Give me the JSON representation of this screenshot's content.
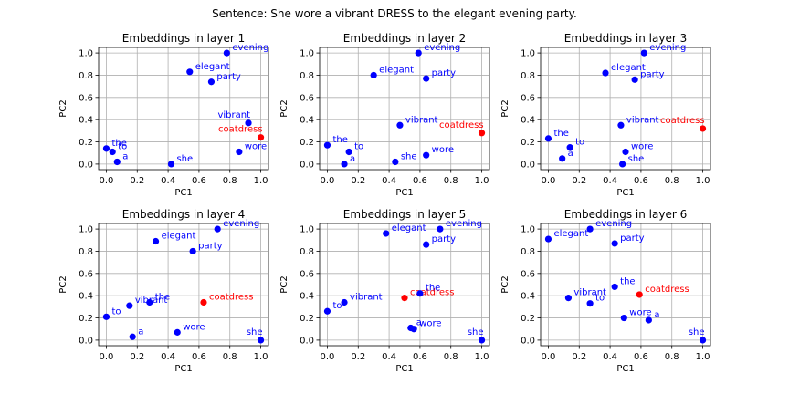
{
  "figure": {
    "suptitle": "Sentence: She wore a vibrant DRESS to the elegant evening party.",
    "colors": {
      "word": "#0000ff",
      "target": "#ff0000",
      "grid": "#b0b0b0",
      "axis": "#000000"
    }
  },
  "chart_data": [
    {
      "type": "scatter",
      "title": "Embeddings in layer 1",
      "xlabel": "PC1",
      "ylabel": "PC2",
      "xlim": [
        -0.05,
        1.05
      ],
      "ylim": [
        -0.05,
        1.05
      ],
      "xticks": [
        "0.0",
        "0.2",
        "0.4",
        "0.6",
        "0.8",
        "1.0"
      ],
      "yticks": [
        "0.0",
        "0.2",
        "0.4",
        "0.6",
        "0.8",
        "1.0"
      ],
      "grid": true,
      "points": [
        {
          "label": "she",
          "x": 0.42,
          "y": 0.0,
          "color": "#0000ff"
        },
        {
          "label": "wore",
          "x": 0.86,
          "y": 0.11,
          "color": "#0000ff"
        },
        {
          "label": "a",
          "x": 0.07,
          "y": 0.02,
          "color": "#0000ff"
        },
        {
          "label": "vibrant",
          "x": 0.92,
          "y": 0.37,
          "color": "#0000ff"
        },
        {
          "label": "coatdress",
          "x": 1.0,
          "y": 0.24,
          "color": "#ff0000"
        },
        {
          "label": "to",
          "x": 0.04,
          "y": 0.11,
          "color": "#0000ff"
        },
        {
          "label": "the",
          "x": 0.0,
          "y": 0.14,
          "color": "#0000ff"
        },
        {
          "label": "elegant",
          "x": 0.54,
          "y": 0.83,
          "color": "#0000ff"
        },
        {
          "label": "evening",
          "x": 0.78,
          "y": 1.0,
          "color": "#0000ff"
        },
        {
          "label": "party",
          "x": 0.68,
          "y": 0.74,
          "color": "#0000ff"
        }
      ]
    },
    {
      "type": "scatter",
      "title": "Embeddings in layer 2",
      "xlabel": "PC1",
      "ylabel": "PC2",
      "xlim": [
        -0.05,
        1.05
      ],
      "ylim": [
        -0.05,
        1.05
      ],
      "xticks": [
        "0.0",
        "0.2",
        "0.4",
        "0.6",
        "0.8",
        "1.0"
      ],
      "yticks": [
        "0.0",
        "0.2",
        "0.4",
        "0.6",
        "0.8",
        "1.0"
      ],
      "grid": true,
      "points": [
        {
          "label": "she",
          "x": 0.44,
          "y": 0.02,
          "color": "#0000ff"
        },
        {
          "label": "wore",
          "x": 0.64,
          "y": 0.08,
          "color": "#0000ff"
        },
        {
          "label": "a",
          "x": 0.11,
          "y": 0.0,
          "color": "#0000ff"
        },
        {
          "label": "vibrant",
          "x": 0.47,
          "y": 0.35,
          "color": "#0000ff"
        },
        {
          "label": "coatdress",
          "x": 1.0,
          "y": 0.28,
          "color": "#ff0000"
        },
        {
          "label": "to",
          "x": 0.14,
          "y": 0.11,
          "color": "#0000ff"
        },
        {
          "label": "the",
          "x": 0.0,
          "y": 0.17,
          "color": "#0000ff"
        },
        {
          "label": "elegant",
          "x": 0.3,
          "y": 0.8,
          "color": "#0000ff"
        },
        {
          "label": "evening",
          "x": 0.59,
          "y": 1.0,
          "color": "#0000ff"
        },
        {
          "label": "party",
          "x": 0.64,
          "y": 0.77,
          "color": "#0000ff"
        }
      ]
    },
    {
      "type": "scatter",
      "title": "Embeddings in layer 3",
      "xlabel": "PC1",
      "ylabel": "PC2",
      "xlim": [
        -0.05,
        1.05
      ],
      "ylim": [
        -0.05,
        1.05
      ],
      "xticks": [
        "0.0",
        "0.2",
        "0.4",
        "0.6",
        "0.8",
        "1.0"
      ],
      "yticks": [
        "0.0",
        "0.2",
        "0.4",
        "0.6",
        "0.8",
        "1.0"
      ],
      "grid": true,
      "points": [
        {
          "label": "she",
          "x": 0.48,
          "y": 0.0,
          "color": "#0000ff"
        },
        {
          "label": "wore",
          "x": 0.5,
          "y": 0.11,
          "color": "#0000ff"
        },
        {
          "label": "a",
          "x": 0.09,
          "y": 0.05,
          "color": "#0000ff"
        },
        {
          "label": "vibrant",
          "x": 0.47,
          "y": 0.35,
          "color": "#0000ff"
        },
        {
          "label": "coatdress",
          "x": 1.0,
          "y": 0.32,
          "color": "#ff0000"
        },
        {
          "label": "to",
          "x": 0.14,
          "y": 0.15,
          "color": "#0000ff"
        },
        {
          "label": "the",
          "x": 0.0,
          "y": 0.23,
          "color": "#0000ff"
        },
        {
          "label": "elegant",
          "x": 0.37,
          "y": 0.82,
          "color": "#0000ff"
        },
        {
          "label": "evening",
          "x": 0.62,
          "y": 1.0,
          "color": "#0000ff"
        },
        {
          "label": "party",
          "x": 0.56,
          "y": 0.76,
          "color": "#0000ff"
        }
      ]
    },
    {
      "type": "scatter",
      "title": "Embeddings in layer 4",
      "xlabel": "PC1",
      "ylabel": "PC2",
      "xlim": [
        -0.05,
        1.05
      ],
      "ylim": [
        -0.05,
        1.05
      ],
      "xticks": [
        "0.0",
        "0.2",
        "0.4",
        "0.6",
        "0.8",
        "1.0"
      ],
      "yticks": [
        "0.0",
        "0.2",
        "0.4",
        "0.6",
        "0.8",
        "1.0"
      ],
      "grid": true,
      "points": [
        {
          "label": "she",
          "x": 1.0,
          "y": 0.0,
          "color": "#0000ff"
        },
        {
          "label": "wore",
          "x": 0.46,
          "y": 0.07,
          "color": "#0000ff"
        },
        {
          "label": "a",
          "x": 0.17,
          "y": 0.03,
          "color": "#0000ff"
        },
        {
          "label": "vibrant",
          "x": 0.15,
          "y": 0.31,
          "color": "#0000ff"
        },
        {
          "label": "coatdress",
          "x": 0.63,
          "y": 0.34,
          "color": "#ff0000"
        },
        {
          "label": "to",
          "x": 0.0,
          "y": 0.21,
          "color": "#0000ff"
        },
        {
          "label": "the",
          "x": 0.28,
          "y": 0.34,
          "color": "#0000ff"
        },
        {
          "label": "elegant",
          "x": 0.32,
          "y": 0.89,
          "color": "#0000ff"
        },
        {
          "label": "evening",
          "x": 0.72,
          "y": 1.0,
          "color": "#0000ff"
        },
        {
          "label": "party",
          "x": 0.56,
          "y": 0.8,
          "color": "#0000ff"
        }
      ]
    },
    {
      "type": "scatter",
      "title": "Embeddings in layer 5",
      "xlabel": "PC1",
      "ylabel": "PC2",
      "xlim": [
        -0.05,
        1.05
      ],
      "ylim": [
        -0.05,
        1.05
      ],
      "xticks": [
        "0.0",
        "0.2",
        "0.4",
        "0.6",
        "0.8",
        "1.0"
      ],
      "yticks": [
        "0.0",
        "0.2",
        "0.4",
        "0.6",
        "0.8",
        "1.0"
      ],
      "grid": true,
      "points": [
        {
          "label": "she",
          "x": 1.0,
          "y": 0.0,
          "color": "#0000ff"
        },
        {
          "label": "wore",
          "x": 0.56,
          "y": 0.1,
          "color": "#0000ff"
        },
        {
          "label": "a",
          "x": 0.54,
          "y": 0.11,
          "color": "#0000ff"
        },
        {
          "label": "vibrant",
          "x": 0.11,
          "y": 0.34,
          "color": "#0000ff"
        },
        {
          "label": "coatdress",
          "x": 0.5,
          "y": 0.38,
          "color": "#ff0000"
        },
        {
          "label": "to",
          "x": 0.0,
          "y": 0.26,
          "color": "#0000ff"
        },
        {
          "label": "the",
          "x": 0.6,
          "y": 0.42,
          "color": "#0000ff"
        },
        {
          "label": "elegant",
          "x": 0.38,
          "y": 0.96,
          "color": "#0000ff"
        },
        {
          "label": "evening",
          "x": 0.73,
          "y": 1.0,
          "color": "#0000ff"
        },
        {
          "label": "party",
          "x": 0.64,
          "y": 0.86,
          "color": "#0000ff"
        }
      ]
    },
    {
      "type": "scatter",
      "title": "Embeddings in layer 6",
      "xlabel": "PC1",
      "ylabel": "PC2",
      "xlim": [
        -0.05,
        1.05
      ],
      "ylim": [
        -0.05,
        1.05
      ],
      "xticks": [
        "0.0",
        "0.2",
        "0.4",
        "0.6",
        "0.8",
        "1.0"
      ],
      "yticks": [
        "0.0",
        "0.2",
        "0.4",
        "0.6",
        "0.8",
        "1.0"
      ],
      "grid": true,
      "points": [
        {
          "label": "she",
          "x": 1.0,
          "y": 0.0,
          "color": "#0000ff"
        },
        {
          "label": "wore",
          "x": 0.49,
          "y": 0.2,
          "color": "#0000ff"
        },
        {
          "label": "a",
          "x": 0.65,
          "y": 0.18,
          "color": "#0000ff"
        },
        {
          "label": "vibrant",
          "x": 0.13,
          "y": 0.38,
          "color": "#0000ff"
        },
        {
          "label": "coatdress",
          "x": 0.59,
          "y": 0.41,
          "color": "#ff0000"
        },
        {
          "label": "to",
          "x": 0.27,
          "y": 0.33,
          "color": "#0000ff"
        },
        {
          "label": "the",
          "x": 0.43,
          "y": 0.48,
          "color": "#0000ff"
        },
        {
          "label": "elegant",
          "x": 0.0,
          "y": 0.91,
          "color": "#0000ff"
        },
        {
          "label": "evening",
          "x": 0.27,
          "y": 1.0,
          "color": "#0000ff"
        },
        {
          "label": "party",
          "x": 0.43,
          "y": 0.87,
          "color": "#0000ff"
        }
      ]
    }
  ]
}
